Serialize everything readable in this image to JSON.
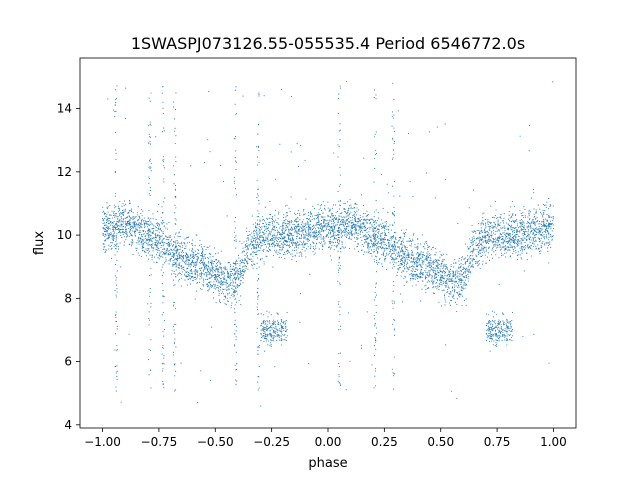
{
  "chart_data": {
    "type": "scatter",
    "title": "1SWASPJ073126.55-055535.4 Period 6546772.0s",
    "xlabel": "phase",
    "ylabel": "flux",
    "xlim": [
      -1.1,
      1.1
    ],
    "ylim": [
      3.9,
      15.6
    ],
    "xticks": [
      -1.0,
      -0.75,
      -0.5,
      -0.25,
      0.0,
      0.25,
      0.5,
      0.75,
      1.0
    ],
    "xtick_labels": [
      "−1.00",
      "−0.75",
      "−0.50",
      "−0.25",
      "0.00",
      "0.25",
      "0.50",
      "0.75",
      "1.00"
    ],
    "yticks": [
      4,
      6,
      8,
      10,
      12,
      14
    ],
    "ytick_labels": [
      "4",
      "6",
      "8",
      "10",
      "12",
      "14"
    ],
    "grid": false,
    "legend": "none",
    "marker_color": "#1f77b4",
    "series": [
      {
        "description": "folded light curve (phase repeated twice)",
        "trend_x": [
          -1.0,
          -0.95,
          -0.9,
          -0.85,
          -0.8,
          -0.75,
          -0.7,
          -0.65,
          -0.6,
          -0.55,
          -0.5,
          -0.45,
          -0.4,
          -0.35,
          -0.3,
          -0.25,
          -0.2,
          -0.15,
          -0.1,
          -0.05,
          0.0,
          0.05,
          0.1,
          0.15,
          0.2,
          0.25,
          0.3,
          0.35,
          0.4,
          0.45,
          0.5,
          0.55,
          0.6,
          0.65,
          0.7,
          0.75,
          0.8,
          0.85,
          0.9,
          0.95,
          1.0
        ],
        "trend_y": [
          10.3,
          10.2,
          10.4,
          10.2,
          10.0,
          9.8,
          9.5,
          9.3,
          9.1,
          9.0,
          8.8,
          8.5,
          8.6,
          9.6,
          10.0,
          10.0,
          10.0,
          10.0,
          10.1,
          10.2,
          10.3,
          10.2,
          10.4,
          10.2,
          10.0,
          9.8,
          9.5,
          9.3,
          9.1,
          9.0,
          8.8,
          8.5,
          8.6,
          9.6,
          10.0,
          10.0,
          10.0,
          10.0,
          10.1,
          10.2,
          10.3
        ]
      }
    ]
  }
}
